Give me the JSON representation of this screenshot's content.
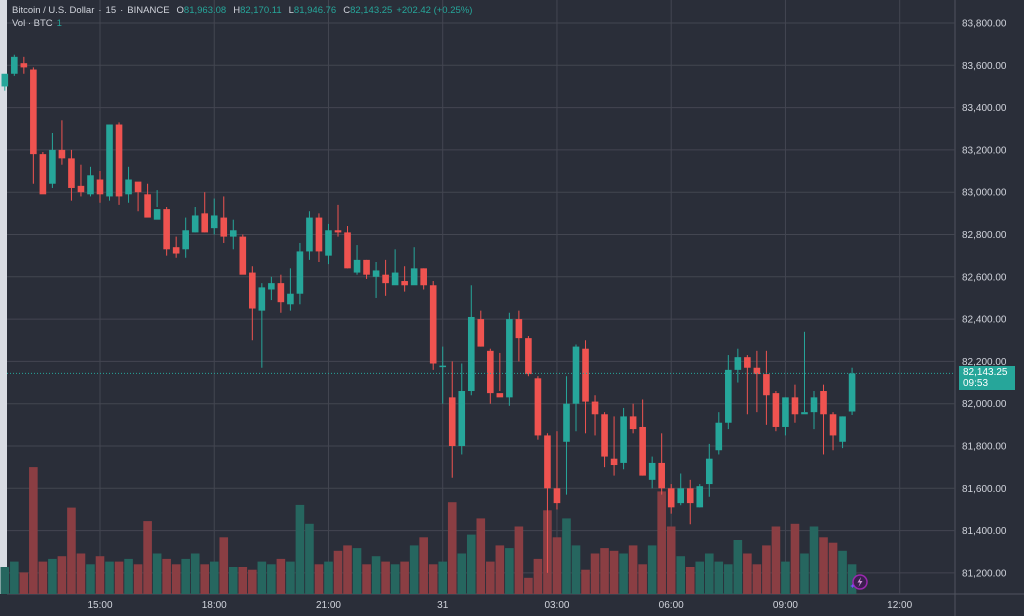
{
  "legend": {
    "symbol": "Bitcoin / U.S. Dollar",
    "interval": "15",
    "exchange": "BINANCE",
    "open_label": "O",
    "open": "81,963.08",
    "high_label": "H",
    "high": "82,170.11",
    "low_label": "L",
    "low": "81,946.76",
    "close_label": "C",
    "close": "82,143.25",
    "change": "+202.42 (+0.25%)",
    "volume_label": "Vol · BTC",
    "volume_value": "1"
  },
  "price_badge": {
    "price": "82,143.25",
    "countdown": "09:53"
  },
  "colors": {
    "up": "#26a69a",
    "down": "#ef5350",
    "vol_up": "#26665f",
    "vol_down": "#8a3e43",
    "background": "#2a2e39",
    "grid": "#434651"
  },
  "chart_data": {
    "type": "candlestick",
    "title": "Bitcoin / U.S. Dollar · 15 · BINANCE",
    "xlabel": "",
    "ylabel": "",
    "ylim": [
      81100,
      83850
    ],
    "y_ticks": [
      "83,800.00",
      "83,600.00",
      "83,400.00",
      "83,200.00",
      "83,000.00",
      "82,800.00",
      "82,600.00",
      "82,400.00",
      "82,200.00",
      "82,000.00",
      "81,800.00",
      "81,600.00",
      "81,400.00",
      "81,200.00"
    ],
    "x_ticks": [
      {
        "label": "15:00",
        "index": 10
      },
      {
        "label": "18:00",
        "index": 22
      },
      {
        "label": "21:00",
        "index": 34
      },
      {
        "label": "31",
        "index": 46
      },
      {
        "label": "03:00",
        "index": 58
      },
      {
        "label": "06:00",
        "index": 70
      },
      {
        "label": "09:00",
        "index": 82
      },
      {
        "label": "12:00",
        "index": 94
      }
    ],
    "grid": true,
    "legend_position": "top-left",
    "candles": [
      [
        83500,
        83560,
        83520,
        83480,
        1
      ],
      [
        83560,
        83640,
        83650,
        83550,
        1.2
      ],
      [
        83610,
        83590,
        83640,
        83560,
        0.8
      ],
      [
        83580,
        83180,
        83590,
        83040,
        4.7
      ],
      [
        83180,
        82990,
        83190,
        83000,
        1.2
      ],
      [
        83040,
        83200,
        83280,
        83020,
        1.3
      ],
      [
        83200,
        83160,
        83340,
        83130,
        1.4
      ],
      [
        83160,
        83020,
        83200,
        82960,
        3.2
      ],
      [
        83030,
        83000,
        83130,
        82980,
        1.5
      ],
      [
        82990,
        83080,
        83120,
        82980,
        1.1
      ],
      [
        83060,
        82990,
        83100,
        82950,
        1.4
      ],
      [
        82980,
        83320,
        83320,
        82960,
        1.2
      ],
      [
        83320,
        82980,
        83330,
        82940,
        1.2
      ],
      [
        82990,
        83060,
        83120,
        82950,
        1.3
      ],
      [
        83050,
        83000,
        83040,
        82910,
        1.1
      ],
      [
        82990,
        82880,
        83040,
        82920,
        2.7
      ],
      [
        82870,
        82920,
        83010,
        82930,
        1.5
      ],
      [
        82920,
        82730,
        82930,
        82700,
        1.3
      ],
      [
        82740,
        82710,
        82790,
        82690,
        1.1
      ],
      [
        82730,
        82820,
        82880,
        82690,
        1.3
      ],
      [
        82810,
        82890,
        82930,
        82810,
        1.5
      ],
      [
        82900,
        82810,
        83000,
        82810,
        1.1
      ],
      [
        82830,
        82890,
        82970,
        82800,
        1.2
      ],
      [
        82880,
        82790,
        82980,
        82760,
        2.1
      ],
      [
        82790,
        82820,
        82870,
        82730,
        1.0
      ],
      [
        82790,
        82610,
        82800,
        82620,
        1.0
      ],
      [
        82620,
        82450,
        82650,
        82300,
        0.9
      ],
      [
        82440,
        82550,
        82570,
        82170,
        1.2
      ],
      [
        82540,
        82570,
        82600,
        82490,
        1.1
      ],
      [
        82570,
        82480,
        82610,
        82430,
        1.3
      ],
      [
        82470,
        82520,
        82640,
        82440,
        1.2
      ],
      [
        82520,
        82720,
        82760,
        82470,
        3.3
      ],
      [
        82720,
        82880,
        82910,
        82680,
        2.6
      ],
      [
        82880,
        82720,
        82900,
        82670,
        1.1
      ],
      [
        82700,
        82820,
        82850,
        82660,
        1.2
      ],
      [
        82820,
        82810,
        82940,
        82790,
        1.6
      ],
      [
        82810,
        82640,
        82840,
        82640,
        1.8
      ],
      [
        82620,
        82680,
        82750,
        82610,
        1.7
      ],
      [
        82680,
        82610,
        82680,
        82590,
        1.1
      ],
      [
        82600,
        82630,
        82670,
        82500,
        1.4
      ],
      [
        82610,
        82570,
        82680,
        82510,
        1.2
      ],
      [
        82560,
        82620,
        82730,
        82570,
        1.1
      ],
      [
        82580,
        82560,
        82650,
        82530,
        1.2
      ],
      [
        82560,
        82640,
        82740,
        82620,
        1.8
      ],
      [
        82640,
        82560,
        82640,
        82540,
        2.1
      ],
      [
        82560,
        82190,
        82580,
        82160,
        1.1
      ],
      [
        82180,
        82180,
        82270,
        82000,
        1.2
      ],
      [
        82030,
        81800,
        82200,
        81650,
        3.4
      ],
      [
        81800,
        82060,
        82190,
        81760,
        1.5
      ],
      [
        82060,
        82410,
        82560,
        82040,
        2.2
      ],
      [
        82400,
        82270,
        82440,
        82270,
        2.8
      ],
      [
        82250,
        82050,
        82260,
        82000,
        1.2
      ],
      [
        82050,
        82030,
        82240,
        82060,
        1.8
      ],
      [
        82030,
        82400,
        82430,
        81990,
        1.7
      ],
      [
        82400,
        82310,
        82440,
        82200,
        2.5
      ],
      [
        82310,
        82140,
        82320,
        82130,
        0.6
      ],
      [
        82120,
        81850,
        82130,
        81830,
        1.3
      ],
      [
        81850,
        81600,
        81860,
        81200,
        3.1
      ],
      [
        81600,
        81530,
        81870,
        81500,
        2.1
      ],
      [
        81820,
        82000,
        82130,
        81570,
        2.8
      ],
      [
        82000,
        82270,
        82280,
        81870,
        1.8
      ],
      [
        82260,
        82010,
        82300,
        81860,
        0.9
      ],
      [
        82010,
        81950,
        82040,
        81850,
        1.5
      ],
      [
        81950,
        81750,
        81960,
        81700,
        1.7
      ],
      [
        81740,
        81710,
        81940,
        81660,
        1.6
      ],
      [
        81720,
        81940,
        81980,
        81690,
        1.5
      ],
      [
        81940,
        81880,
        82000,
        81860,
        1.8
      ],
      [
        81890,
        81660,
        82020,
        81660,
        1.1
      ],
      [
        81640,
        81720,
        81750,
        81600,
        1.8
      ],
      [
        81720,
        81600,
        81860,
        81570,
        3.8
      ],
      [
        81600,
        81510,
        81620,
        81480,
        2.5
      ],
      [
        81530,
        81600,
        81670,
        81520,
        1.4
      ],
      [
        81600,
        81530,
        81640,
        81430,
        1.0
      ],
      [
        81510,
        81610,
        81620,
        81510,
        1.2
      ],
      [
        81620,
        81740,
        81810,
        81560,
        1.5
      ],
      [
        81780,
        81910,
        81960,
        81760,
        1.2
      ],
      [
        81910,
        82160,
        82230,
        81880,
        1.1
      ],
      [
        82160,
        82220,
        82260,
        82100,
        2.0
      ],
      [
        82220,
        82170,
        82230,
        81950,
        1.5
      ],
      [
        82170,
        82140,
        82250,
        81960,
        1.1
      ],
      [
        82140,
        82040,
        82250,
        81900,
        1.8
      ],
      [
        82050,
        81890,
        82060,
        81870,
        2.5
      ],
      [
        81890,
        82030,
        82030,
        81850,
        1.2
      ],
      [
        82030,
        81950,
        82090,
        81910,
        2.6
      ],
      [
        81950,
        81960,
        82340,
        81960,
        1.5
      ],
      [
        81960,
        82030,
        82060,
        81880,
        2.5
      ],
      [
        82060,
        81950,
        82090,
        81760,
        2.1
      ],
      [
        81950,
        81850,
        81960,
        81780,
        1.9
      ],
      [
        81820,
        81940,
        81940,
        81790,
        1.6
      ],
      [
        81963.08,
        82143.25,
        82170.11,
        81946.76,
        1.1
      ]
    ],
    "candle_fields": [
      "open",
      "close",
      "high",
      "low",
      "volume_rel"
    ]
  }
}
